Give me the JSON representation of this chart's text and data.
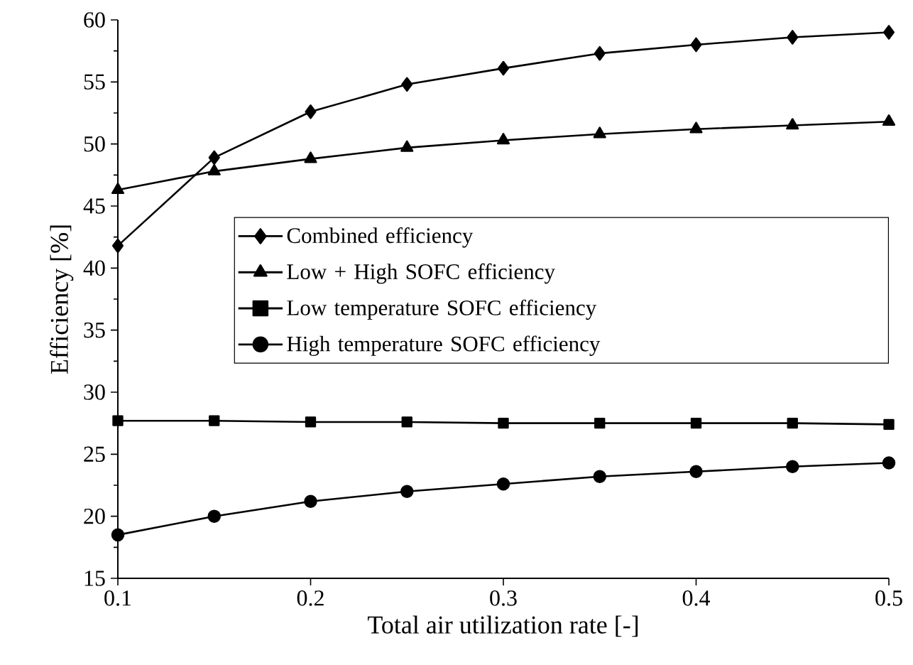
{
  "chart_data": {
    "type": "line",
    "xlabel": "Total air utilization rate [-]",
    "ylabel": "Efficiency [%]",
    "x": [
      0.1,
      0.15,
      0.2,
      0.25,
      0.3,
      0.35,
      0.4,
      0.45,
      0.5
    ],
    "series": [
      {
        "name": "Combined efficiency",
        "color": "#000000",
        "marker": "diamond",
        "values": [
          41.8,
          48.9,
          52.6,
          54.8,
          56.1,
          57.3,
          58.0,
          58.6,
          59.0
        ]
      },
      {
        "name": "Low + High SOFC efficiency",
        "color": "#000000",
        "marker": "triangle",
        "values": [
          46.3,
          47.8,
          48.8,
          49.7,
          50.3,
          50.8,
          51.2,
          51.5,
          51.8
        ]
      },
      {
        "name": "Low temperature SOFC efficiency",
        "color": "#000000",
        "marker": "square",
        "values": [
          27.7,
          27.7,
          27.6,
          27.6,
          27.5,
          27.5,
          27.5,
          27.5,
          27.4
        ]
      },
      {
        "name": "High temperature SOFC efficiency",
        "color": "#000000",
        "marker": "circle",
        "values": [
          18.5,
          20.0,
          21.2,
          22.0,
          22.6,
          23.2,
          23.6,
          24.0,
          24.3
        ]
      }
    ],
    "xlim": [
      0.1,
      0.5
    ],
    "xticks": [
      0.1,
      0.2,
      0.3,
      0.4,
      0.5
    ],
    "ylim": [
      15,
      60
    ],
    "yticks": [
      15,
      20,
      25,
      30,
      35,
      40,
      45,
      50,
      55,
      60
    ],
    "legend": "center",
    "line_style": "solid",
    "grid": false
  }
}
